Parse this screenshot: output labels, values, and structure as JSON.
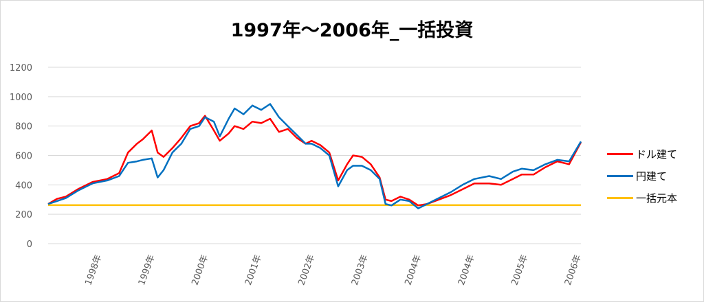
{
  "chart_data": {
    "type": "line",
    "title": "1997年～2006年_一括投資",
    "ylim": [
      0,
      1200
    ],
    "yticks": [
      0,
      200,
      400,
      600,
      800,
      1000,
      1200
    ],
    "x_range": [
      1997.0,
      2006.0
    ],
    "xtick_labels": [
      "1998年",
      "1999年",
      "2000年",
      "2001年",
      "2002年",
      "2003年",
      "2004年",
      "2004年",
      "2005年",
      "2006年"
    ],
    "grid": true,
    "legend_position": "right",
    "series": [
      {
        "name": "ドル建て",
        "color": "#ff0000",
        "x": [
          1997.0,
          1997.15,
          1997.3,
          1997.5,
          1997.75,
          1998.0,
          1998.2,
          1998.35,
          1998.5,
          1998.6,
          1998.75,
          1998.85,
          1998.95,
          1999.1,
          1999.25,
          1999.4,
          1999.55,
          1999.65,
          1999.8,
          1999.9,
          2000.05,
          2000.15,
          2000.3,
          2000.45,
          2000.6,
          2000.75,
          2000.9,
          2001.05,
          2001.2,
          2001.35,
          2001.45,
          2001.6,
          2001.75,
          2001.9,
          2002.05,
          2002.15,
          2002.3,
          2002.45,
          2002.6,
          2002.7,
          2002.8,
          2002.95,
          2003.1,
          2003.25,
          2003.4,
          2003.6,
          2003.8,
          2004.0,
          2004.2,
          2004.45,
          2004.65,
          2004.85,
          2005.0,
          2005.2,
          2005.4,
          2005.6,
          2005.8,
          2006.0
        ],
        "values": [
          270,
          305,
          320,
          370,
          420,
          440,
          480,
          620,
          680,
          710,
          770,
          620,
          590,
          650,
          720,
          800,
          820,
          870,
          770,
          700,
          750,
          800,
          780,
          830,
          820,
          850,
          760,
          780,
          720,
          680,
          700,
          670,
          620,
          430,
          540,
          600,
          590,
          540,
          450,
          300,
          290,
          320,
          300,
          260,
          270,
          300,
          330,
          370,
          410,
          410,
          400,
          440,
          470,
          470,
          520,
          560,
          540,
          690
        ]
      },
      {
        "name": "円建て",
        "color": "#0070c0",
        "x": [
          1997.0,
          1997.15,
          1997.3,
          1997.5,
          1997.75,
          1998.0,
          1998.2,
          1998.35,
          1998.5,
          1998.6,
          1998.75,
          1998.85,
          1998.95,
          1999.1,
          1999.25,
          1999.4,
          1999.55,
          1999.65,
          1999.8,
          1999.9,
          2000.05,
          2000.15,
          2000.3,
          2000.45,
          2000.6,
          2000.75,
          2000.9,
          2001.05,
          2001.2,
          2001.35,
          2001.45,
          2001.6,
          2001.75,
          2001.9,
          2002.05,
          2002.15,
          2002.3,
          2002.45,
          2002.6,
          2002.7,
          2002.8,
          2002.95,
          2003.1,
          2003.25,
          2003.4,
          2003.6,
          2003.8,
          2004.0,
          2004.2,
          2004.45,
          2004.65,
          2004.85,
          2005.0,
          2005.2,
          2005.4,
          2005.6,
          2005.8,
          2006.0
        ],
        "values": [
          270,
          290,
          310,
          360,
          410,
          430,
          460,
          550,
          560,
          570,
          580,
          450,
          500,
          620,
          680,
          780,
          800,
          860,
          830,
          730,
          850,
          920,
          880,
          940,
          910,
          950,
          860,
          800,
          740,
          680,
          680,
          650,
          600,
          390,
          500,
          530,
          530,
          500,
          440,
          270,
          260,
          300,
          290,
          240,
          270,
          310,
          350,
          400,
          440,
          460,
          440,
          490,
          510,
          500,
          540,
          570,
          560,
          695
        ]
      },
      {
        "name": "一括元本",
        "color": "#ffc000",
        "x": [
          1997.0,
          2006.0
        ],
        "values": [
          262,
          262
        ]
      }
    ]
  }
}
